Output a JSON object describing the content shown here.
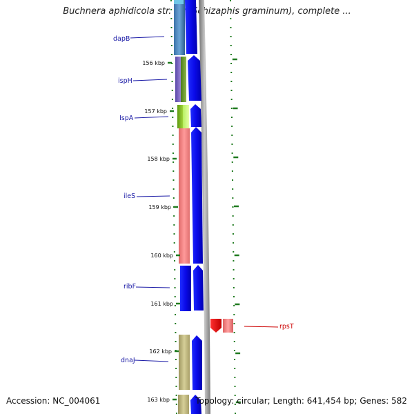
{
  "title": "Buchnera aphidicola str. Sg (Schizaphis graminum), complete ...",
  "footer": {
    "accession": "Accession: NC_004061",
    "summary": "Topology: circular; Length: 641,454 bp; Genes: 582"
  },
  "colors": {
    "forward_cds": "#0a14f0",
    "reverse_cds": "#ff0000",
    "axis_tick": "#1f7a1f",
    "backbone": "#8c8c8c",
    "label_forward": "#1a1aa6",
    "label_reverse": "#cc0000"
  },
  "ticks": [
    "156 kbp",
    "157 kbp",
    "158 kbp",
    "159 kbp",
    "160 kbp",
    "161 kbp",
    "162 kbp",
    "163 kbp"
  ],
  "genes": [
    {
      "label": "dapB",
      "strand": "forward",
      "cog_color": "#4f86b8"
    },
    {
      "label": "ispH",
      "strand": "forward",
      "cog_color": "#7a5fb5"
    },
    {
      "label": "IspA",
      "strand": "forward",
      "cog_color": "#86b81a"
    },
    {
      "label": "ileS",
      "strand": "forward",
      "cog_color": "#f08a8a"
    },
    {
      "label": "ribF",
      "strand": "forward",
      "cog_color": "#1a1ae6"
    },
    {
      "label": "rpsT",
      "strand": "reverse",
      "cog_color": "#f08a8a"
    },
    {
      "label": "dnaJ",
      "strand": "forward",
      "cog_color": "#b8b07a"
    }
  ]
}
